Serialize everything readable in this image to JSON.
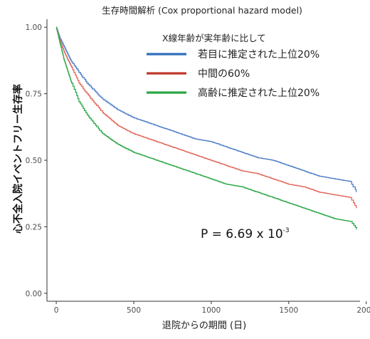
{
  "chart_data": {
    "type": "line",
    "title": "生存時間解析 (Cox proportional hazard model)",
    "xlabel": "退院からの期間 (日)",
    "ylabel": "心不全入院イベントフリー生存率",
    "xlim": [
      -60,
      1960
    ],
    "ylim": [
      -0.03,
      1.03
    ],
    "x_ticks": [
      0,
      500,
      1000,
      1500,
      2000
    ],
    "y_ticks": [
      0.0,
      0.25,
      0.5,
      0.75,
      1.0
    ],
    "y_tick_labels": [
      "0.00",
      "0.25",
      "0.50",
      "0.75",
      "1.00"
    ],
    "grid": false,
    "legend": {
      "title": "X線年齢が実年齢に比して",
      "position": "top-right"
    },
    "annotation": {
      "base": "P = 6.69 x 10",
      "exponent": "-3"
    },
    "series": [
      {
        "name": "若目に推定された上位20%",
        "color": "#4f7fc8",
        "x": [
          0,
          25,
          50,
          100,
          150,
          200,
          300,
          400,
          500,
          600,
          700,
          800,
          900,
          1000,
          1100,
          1200,
          1300,
          1400,
          1500,
          1600,
          1700,
          1800,
          1900,
          1940
        ],
        "y": [
          1.0,
          0.96,
          0.93,
          0.87,
          0.83,
          0.79,
          0.73,
          0.69,
          0.66,
          0.64,
          0.62,
          0.6,
          0.58,
          0.57,
          0.55,
          0.53,
          0.51,
          0.5,
          0.48,
          0.46,
          0.44,
          0.43,
          0.42,
          0.38
        ]
      },
      {
        "name": "中間の60%",
        "color": "#e0685c",
        "x": [
          0,
          25,
          50,
          100,
          150,
          200,
          300,
          400,
          500,
          600,
          700,
          800,
          900,
          1000,
          1100,
          1200,
          1300,
          1400,
          1500,
          1600,
          1700,
          1800,
          1900,
          1940
        ],
        "y": [
          1.0,
          0.95,
          0.91,
          0.85,
          0.79,
          0.75,
          0.68,
          0.63,
          0.6,
          0.58,
          0.56,
          0.54,
          0.52,
          0.5,
          0.48,
          0.46,
          0.45,
          0.43,
          0.41,
          0.4,
          0.38,
          0.37,
          0.36,
          0.32
        ]
      },
      {
        "name": "高齢に推定された上位20%",
        "color": "#2ea84a",
        "x": [
          0,
          25,
          50,
          100,
          150,
          200,
          300,
          400,
          500,
          600,
          700,
          800,
          900,
          1000,
          1100,
          1200,
          1300,
          1400,
          1500,
          1600,
          1700,
          1800,
          1900,
          1940
        ],
        "y": [
          1.0,
          0.94,
          0.88,
          0.79,
          0.72,
          0.67,
          0.6,
          0.56,
          0.53,
          0.51,
          0.49,
          0.47,
          0.45,
          0.43,
          0.41,
          0.4,
          0.38,
          0.36,
          0.34,
          0.32,
          0.3,
          0.28,
          0.27,
          0.24
        ]
      }
    ]
  },
  "legend_line_color": {
    "若目に推定された上位20%": "#2f6fba",
    "中間の60%": "#c0392b",
    "高齢に推定された上位20%": "#2aa845"
  }
}
